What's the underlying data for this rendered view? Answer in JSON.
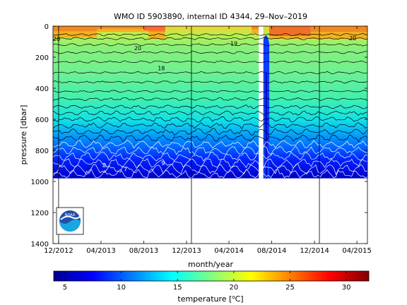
{
  "chart_data": {
    "type": "heatmap",
    "title": "WMO ID 5903890, internal ID 4344, 29–Nov–2019",
    "xlabel": "month/year",
    "ylabel": "pressure [dbar]",
    "x_ticks": [
      "12/2012",
      "04/2013",
      "08/2013",
      "12/2013",
      "04/2014",
      "08/2014",
      "12/2014",
      "04/2015"
    ],
    "xlim": [
      "2012-11-15",
      "2015-05-01"
    ],
    "y_ticks": [
      0,
      200,
      400,
      600,
      800,
      1000,
      1200,
      1400
    ],
    "ylim": [
      1400,
      0
    ],
    "y_reversed": true,
    "data_bottom_pressure": 980,
    "time_markers": [
      "2012-12-01",
      "2013-12-15",
      "2014-12-15"
    ],
    "gap_interval": [
      "2014-06-25",
      "2014-07-08"
    ],
    "cold_anomaly_interval": [
      "2014-07-08",
      "2014-07-25"
    ],
    "contour_labels": [
      {
        "text": "20",
        "date": "2012-11-25",
        "pressure": 95
      },
      {
        "text": "20",
        "date": "2013-07-15",
        "pressure": 155
      },
      {
        "text": "19",
        "date": "2014-04-15",
        "pressure": 125
      },
      {
        "text": "20",
        "date": "2015-03-20",
        "pressure": 90
      },
      {
        "text": "18",
        "date": "2013-09-20",
        "pressure": 285
      },
      {
        "text": "9",
        "date": "2013-09-25",
        "pressure": 895
      },
      {
        "text": "8",
        "date": "2013-04-10",
        "pressure": 910
      },
      {
        "text": "7",
        "date": "2013-06-10",
        "pressure": 935
      }
    ],
    "profile": [
      {
        "pressure": 0,
        "temperature": 22.5
      },
      {
        "pressure": 100,
        "temperature": 20.5
      },
      {
        "pressure": 250,
        "temperature": 19.5
      },
      {
        "pressure": 400,
        "temperature": 17.8
      },
      {
        "pressure": 550,
        "temperature": 15.5
      },
      {
        "pressure": 700,
        "temperature": 13.0
      },
      {
        "pressure": 850,
        "temperature": 10.0
      },
      {
        "pressure": 980,
        "temperature": 6.5
      }
    ],
    "colorbar": {
      "label": "temperature [",
      "unit_sup": "o",
      "unit_tail": "C]",
      "min": 4,
      "max": 32,
      "ticks": [
        5,
        10,
        15,
        20,
        25,
        30
      ]
    },
    "logo_text": "NOAA"
  }
}
